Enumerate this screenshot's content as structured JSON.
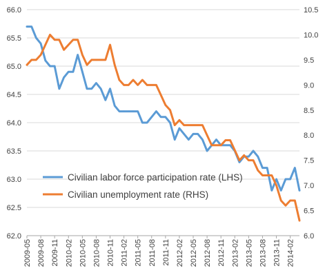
{
  "chart_data": {
    "type": "line",
    "title": "",
    "xlabel": "",
    "ylabel_left": "",
    "ylabel_right": "",
    "grid": true,
    "legend_position": "lower-left (inside plot)",
    "x_tick_labels": [
      "2009-05",
      "2009-08",
      "2009-11",
      "2010-02",
      "2010-05",
      "2010-08",
      "2010-11",
      "2011-02",
      "2011-05",
      "2011-08",
      "2011-11",
      "2012-02",
      "2012-05",
      "2012-08",
      "2012-11",
      "2013-02",
      "2013-05",
      "2013-08",
      "2013-11",
      "2014-02"
    ],
    "x": [
      "2009-05",
      "2009-06",
      "2009-07",
      "2009-08",
      "2009-09",
      "2009-10",
      "2009-11",
      "2009-12",
      "2010-01",
      "2010-02",
      "2010-03",
      "2010-04",
      "2010-05",
      "2010-06",
      "2010-07",
      "2010-08",
      "2010-09",
      "2010-10",
      "2010-11",
      "2010-12",
      "2011-01",
      "2011-02",
      "2011-03",
      "2011-04",
      "2011-05",
      "2011-06",
      "2011-07",
      "2011-08",
      "2011-09",
      "2011-10",
      "2011-11",
      "2011-12",
      "2012-01",
      "2012-02",
      "2012-03",
      "2012-04",
      "2012-05",
      "2012-06",
      "2012-07",
      "2012-08",
      "2012-09",
      "2012-10",
      "2012-11",
      "2012-12",
      "2013-01",
      "2013-02",
      "2013-03",
      "2013-04",
      "2013-05",
      "2013-06",
      "2013-07",
      "2013-08",
      "2013-09",
      "2013-10",
      "2013-11",
      "2013-12",
      "2014-01",
      "2014-02",
      "2014-03",
      "2014-04"
    ],
    "y_left": {
      "min": 62.0,
      "max": 66.0,
      "ticks": [
        "62.0",
        "62.5",
        "63.0",
        "63.5",
        "64.0",
        "64.5",
        "65.0",
        "65.5",
        "66.0"
      ]
    },
    "y_right": {
      "min": 6.0,
      "max": 10.5,
      "ticks": [
        "6.0",
        "6.5",
        "7.0",
        "7.5",
        "8.0",
        "8.5",
        "9.0",
        "9.5",
        "10.0",
        "10.5"
      ]
    },
    "series": [
      {
        "name": "Civilian labor force participation rate (LHS)",
        "axis": "left",
        "color": "#5b9bd5",
        "values": [
          65.7,
          65.7,
          65.5,
          65.4,
          65.1,
          65.0,
          65.0,
          64.6,
          64.8,
          64.9,
          64.9,
          65.2,
          64.9,
          64.6,
          64.6,
          64.7,
          64.6,
          64.4,
          64.6,
          64.3,
          64.2,
          64.2,
          64.2,
          64.2,
          64.2,
          64.0,
          64.0,
          64.1,
          64.2,
          64.1,
          64.1,
          64.0,
          63.7,
          63.9,
          63.8,
          63.7,
          63.8,
          63.8,
          63.7,
          63.5,
          63.6,
          63.7,
          63.6,
          63.6,
          63.6,
          63.5,
          63.3,
          63.4,
          63.4,
          63.5,
          63.4,
          63.2,
          63.2,
          62.8,
          63.0,
          62.8,
          63.0,
          63.0,
          63.2,
          62.8
        ]
      },
      {
        "name": "Civilian unemployment rate (RHS)",
        "axis": "right",
        "color": "#ed7d31",
        "values": [
          9.4,
          9.5,
          9.5,
          9.6,
          9.8,
          10.0,
          9.9,
          9.9,
          9.7,
          9.8,
          9.9,
          9.9,
          9.6,
          9.4,
          9.5,
          9.5,
          9.5,
          9.5,
          9.8,
          9.4,
          9.1,
          9.0,
          9.0,
          9.1,
          9.0,
          9.1,
          9.0,
          9.0,
          9.0,
          8.8,
          8.6,
          8.5,
          8.2,
          8.3,
          8.2,
          8.2,
          8.2,
          8.2,
          8.2,
          8.0,
          7.8,
          7.8,
          7.8,
          7.9,
          7.9,
          7.7,
          7.5,
          7.6,
          7.5,
          7.5,
          7.3,
          7.2,
          7.2,
          7.2,
          7.0,
          6.7,
          6.6,
          6.7,
          6.7,
          6.3
        ]
      }
    ]
  }
}
